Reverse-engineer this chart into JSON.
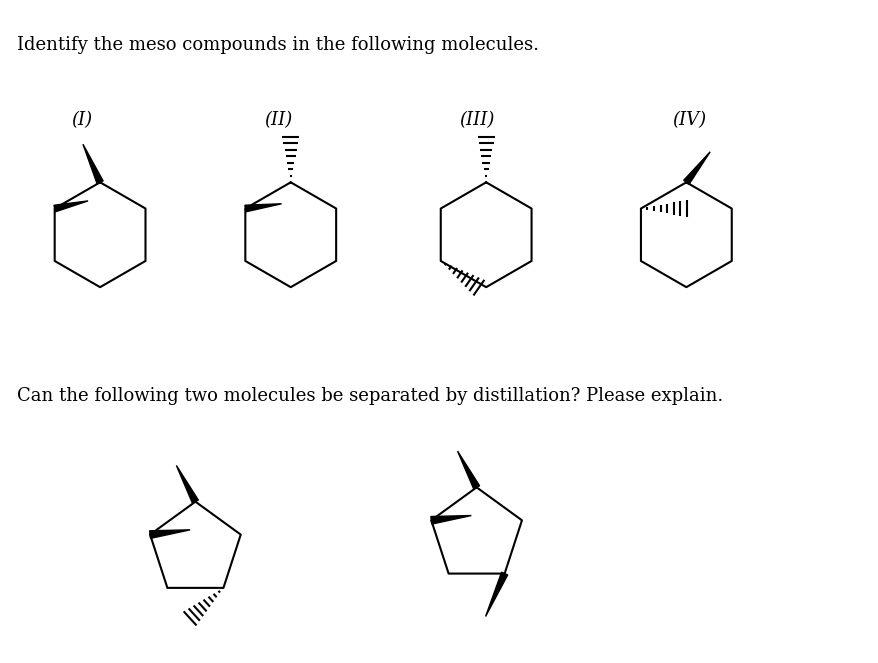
{
  "title_text": "Identify the meso compounds in the following molecules.",
  "subtitle_text": "Can the following two molecules be separated by distillation? Please explain.",
  "labels": [
    "(I)",
    "(II)",
    "(III)",
    "(IV)"
  ],
  "bg_color": "#ffffff",
  "text_color": "#000000",
  "font_size_title": 13,
  "font_size_label": 13
}
